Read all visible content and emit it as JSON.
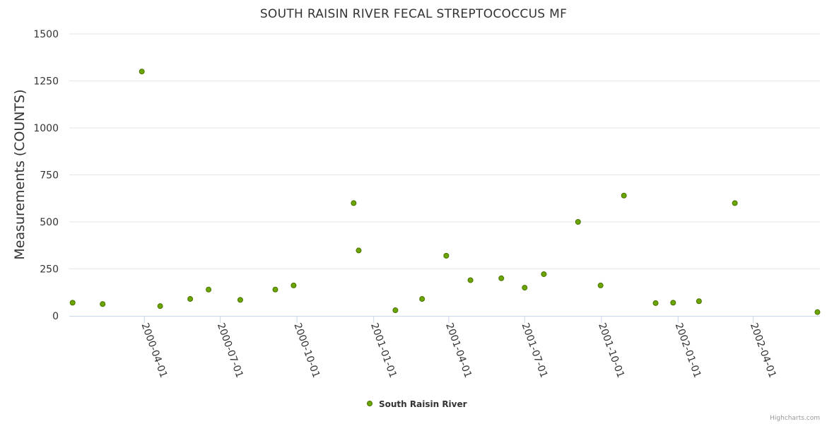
{
  "chart_data": {
    "type": "scatter",
    "title": "SOUTH RAISIN RIVER FECAL STREPTOCOCCUS MF",
    "ylabel": "Measurements (COUNTS)",
    "xlabel": "",
    "ylim": [
      0,
      1500
    ],
    "yticks": [
      0,
      250,
      500,
      750,
      1000,
      1250,
      1500
    ],
    "xlim": [
      "2000-01-02",
      "2002-06-20"
    ],
    "xticks": [
      "2000-04-01",
      "2000-07-01",
      "2000-10-01",
      "2001-01-01",
      "2001-04-01",
      "2001-07-01",
      "2001-10-01",
      "2002-01-01",
      "2002-04-01"
    ],
    "grid": true,
    "legend_position": "bottom-center",
    "series": [
      {
        "name": "South Raisin River",
        "color": "#6aa500",
        "points": [
          {
            "x": "2000-01-06",
            "y": 70
          },
          {
            "x": "2000-02-11",
            "y": 63
          },
          {
            "x": "2000-03-29",
            "y": 1300
          },
          {
            "x": "2000-04-20",
            "y": 52
          },
          {
            "x": "2000-05-26",
            "y": 90
          },
          {
            "x": "2000-06-17",
            "y": 140
          },
          {
            "x": "2000-07-25",
            "y": 85
          },
          {
            "x": "2000-09-05",
            "y": 140
          },
          {
            "x": "2000-09-27",
            "y": 162
          },
          {
            "x": "2000-12-08",
            "y": 600
          },
          {
            "x": "2000-12-14",
            "y": 348
          },
          {
            "x": "2001-01-27",
            "y": 30
          },
          {
            "x": "2001-02-28",
            "y": 90
          },
          {
            "x": "2001-03-29",
            "y": 320
          },
          {
            "x": "2001-04-27",
            "y": 190
          },
          {
            "x": "2001-06-03",
            "y": 200
          },
          {
            "x": "2001-07-01",
            "y": 150
          },
          {
            "x": "2001-07-24",
            "y": 222
          },
          {
            "x": "2001-09-03",
            "y": 500
          },
          {
            "x": "2001-09-30",
            "y": 162
          },
          {
            "x": "2001-10-28",
            "y": 640
          },
          {
            "x": "2001-12-05",
            "y": 68
          },
          {
            "x": "2001-12-26",
            "y": 70
          },
          {
            "x": "2002-01-26",
            "y": 78
          },
          {
            "x": "2002-03-10",
            "y": 600
          },
          {
            "x": "2002-06-17",
            "y": 20
          }
        ]
      }
    ]
  },
  "credits": "Highcharts.com"
}
